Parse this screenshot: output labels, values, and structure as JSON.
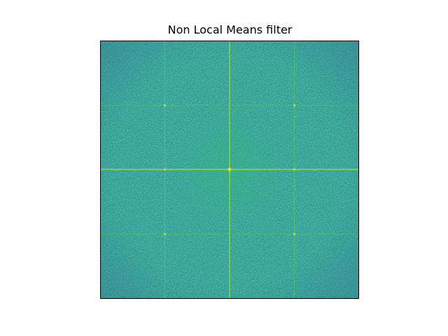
{
  "figure": {
    "title": "Non Local Means filter"
  },
  "image": {
    "content": "2D Fourier transform magnitude spectrum",
    "colormap": "viridis",
    "axes_visible": false,
    "colors": {
      "base": "#22988b",
      "dark_noise": "#2f5f8e",
      "bright_noise": "#35b779",
      "bright_line": "#8fd744",
      "hot_spot": "#dde318"
    }
  }
}
